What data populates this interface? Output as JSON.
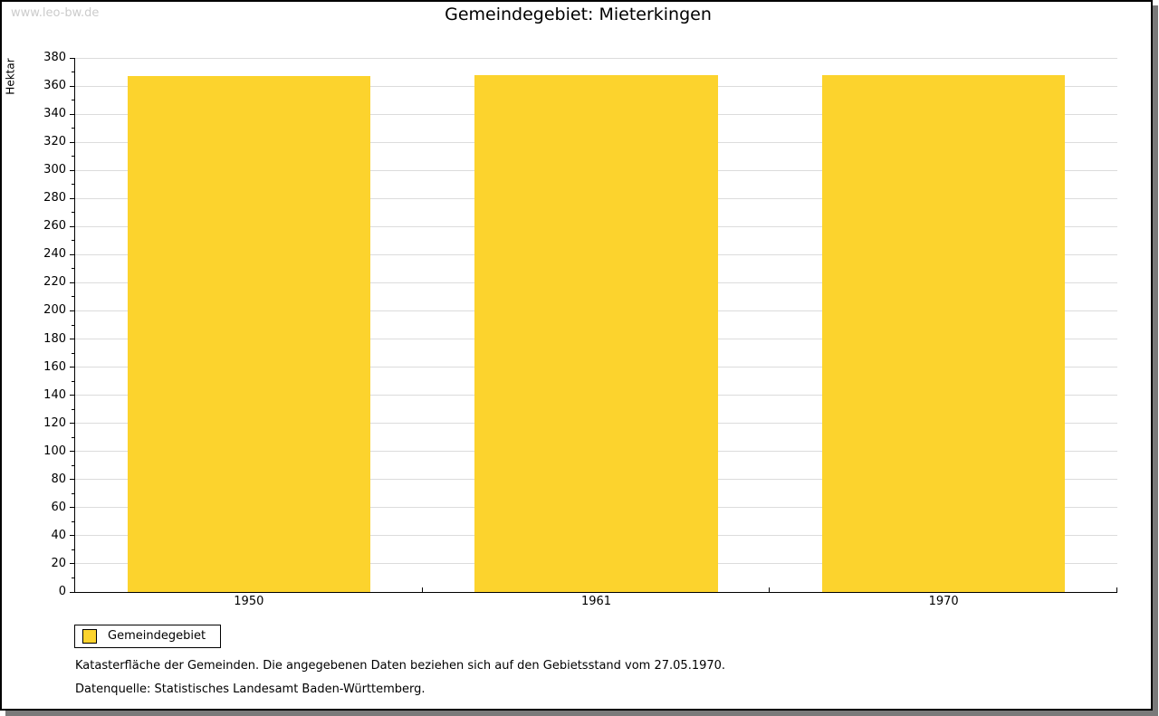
{
  "watermark": "www.leo-bw.de",
  "header": {
    "title": "Gemeindegebiet: Mieterkingen"
  },
  "chart_data": {
    "type": "bar",
    "title": "Gemeindegebiet: Mieterkingen",
    "categories": [
      "1950",
      "1961",
      "1970"
    ],
    "series": [
      {
        "name": "Gemeindegebiet",
        "values": [
          367,
          368,
          368
        ]
      }
    ],
    "xlabel": "",
    "ylabel": "Hektar",
    "ylim": [
      0,
      380
    ],
    "y_tick_step": 20,
    "y_minor_tick_step": 10,
    "grid": true,
    "legend_position": "bottom-left",
    "bar_width_fraction": 0.7
  },
  "legend": {
    "items": [
      {
        "label": "Gemeindegebiet",
        "color": "#fcd32d"
      }
    ]
  },
  "footer": {
    "line1": "Katasterfläche der Gemeinden. Die angegebenen Daten beziehen sich auf den Gebietsstand vom 27.05.1970.",
    "line2": "Datenquelle: Statistisches Landesamt Baden-Württemberg."
  },
  "colors": {
    "bar": "#fcd32d",
    "grid": "#dcdcdc",
    "axis": "#000000",
    "watermark": "#cccccc",
    "frame_shadow": "#7a7a7a"
  }
}
